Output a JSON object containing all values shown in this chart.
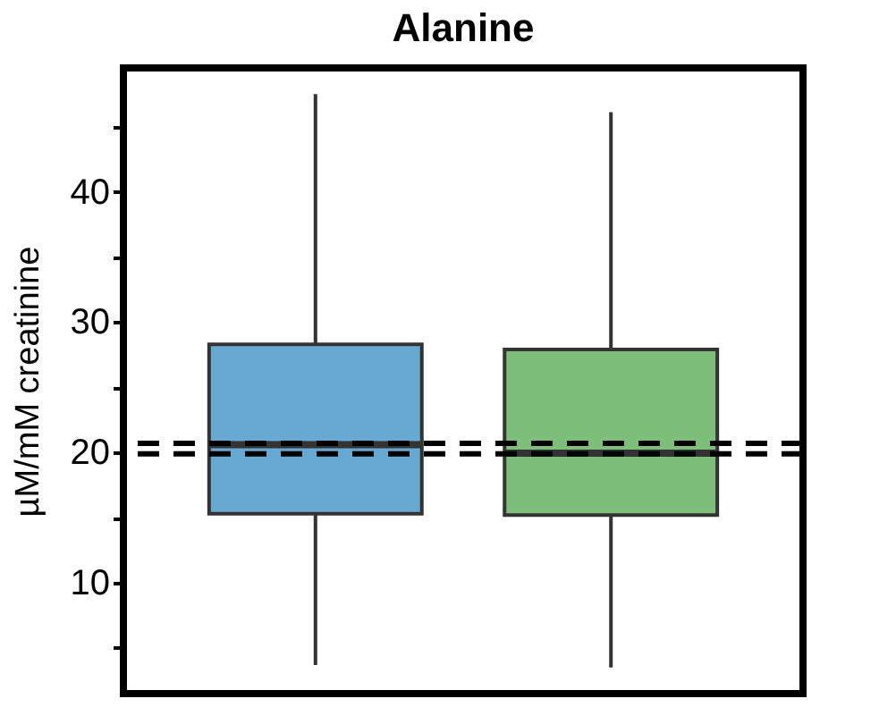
{
  "chart_data": {
    "type": "box",
    "title": "Alanine",
    "ylabel": "µM/mM creatinine",
    "categories": [
      null,
      null
    ],
    "boxes": [
      {
        "low": 3.7,
        "q1": 15.3,
        "median": 20.6,
        "q3": 28.3,
        "high": 47.5
      },
      {
        "low": 3.5,
        "q1": 15.2,
        "median": 19.95,
        "q3": 27.9,
        "high": 46.1
      }
    ],
    "colors": [
      "#67a9d3",
      "#7dbe7b"
    ],
    "ylim": [
      1.5,
      49.5
    ],
    "yticks": [
      {
        "value": 5,
        "label": null
      },
      10,
      {
        "value": 15,
        "label": null
      },
      20,
      {
        "value": 25,
        "label": null
      },
      30,
      {
        "value": 35,
        "label": null
      },
      40,
      {
        "value": 45,
        "label": null
      }
    ],
    "ref_lines": [
      {
        "axis": "y",
        "value": 20.7,
        "label": null,
        "color": "#000000",
        "line_style": "dashed"
      },
      {
        "axis": "y",
        "value": 19.9,
        "label": null,
        "color": "#000000",
        "line_style": "dashed"
      }
    ],
    "grid": false,
    "tick_labels": "y"
  }
}
